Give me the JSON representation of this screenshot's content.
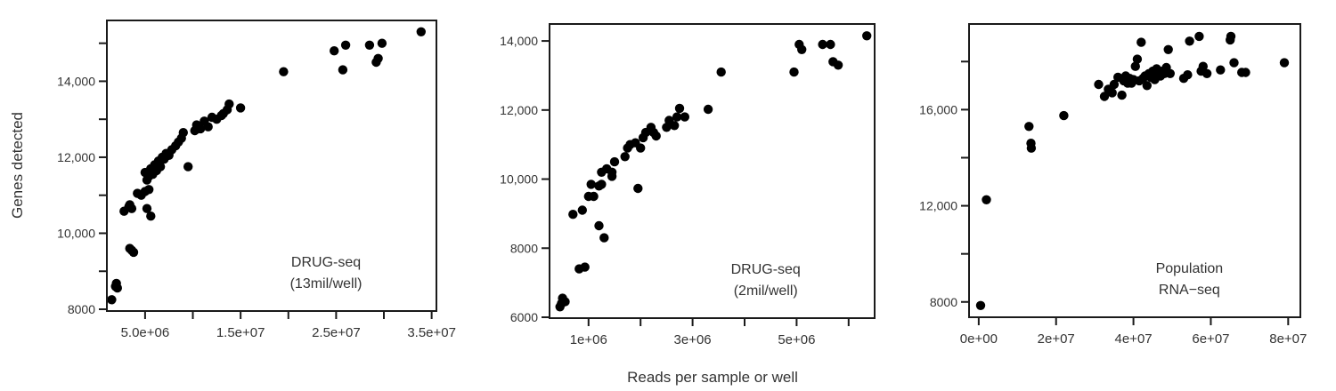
{
  "figure": {
    "ylabel": "Genes detected",
    "xlabel": "Reads per sample or well"
  },
  "chart_data": [
    {
      "type": "scatter",
      "title": "DRUG-seq (13mil/well)",
      "annotation": [
        "DRUG-seq",
        "(13mil/well)"
      ],
      "xlabel": "",
      "ylabel": "Genes detected",
      "xlim": [
        1000000,
        35500000
      ],
      "ylim": [
        8000,
        15600
      ],
      "xticks": [
        {
          "v": 5000000,
          "label": "5.0e+06"
        },
        {
          "v": 10000000,
          "label": ""
        },
        {
          "v": 15000000,
          "label": "1.5e+07"
        },
        {
          "v": 20000000,
          "label": ""
        },
        {
          "v": 25000000,
          "label": "2.5e+07"
        },
        {
          "v": 30000000,
          "label": ""
        },
        {
          "v": 35000000,
          "label": "3.5e+07"
        }
      ],
      "yticks": [
        {
          "v": 8000,
          "label": "8000"
        },
        {
          "v": 9000,
          "label": ""
        },
        {
          "v": 10000,
          "label": "10,000"
        },
        {
          "v": 11000,
          "label": ""
        },
        {
          "v": 12000,
          "label": "12,000"
        },
        {
          "v": 13000,
          "label": ""
        },
        {
          "v": 14000,
          "label": "14,000"
        },
        {
          "v": 15000,
          "label": ""
        }
      ],
      "points": [
        [
          1500000,
          8250
        ],
        [
          1900000,
          8600
        ],
        [
          2000000,
          8680
        ],
        [
          2100000,
          8560
        ],
        [
          3400000,
          9600
        ],
        [
          3600000,
          9550
        ],
        [
          3800000,
          9500
        ],
        [
          2800000,
          10580
        ],
        [
          3300000,
          10700
        ],
        [
          3600000,
          10650
        ],
        [
          3400000,
          10750
        ],
        [
          4200000,
          11050
        ],
        [
          4600000,
          11000
        ],
        [
          5000000,
          11100
        ],
        [
          5200000,
          10650
        ],
        [
          5600000,
          10450
        ],
        [
          5400000,
          11150
        ],
        [
          5000000,
          11600
        ],
        [
          5200000,
          11400
        ],
        [
          5400000,
          11500
        ],
        [
          5600000,
          11700
        ],
        [
          5800000,
          11550
        ],
        [
          6000000,
          11800
        ],
        [
          6200000,
          11650
        ],
        [
          6400000,
          11900
        ],
        [
          6600000,
          11750
        ],
        [
          6800000,
          12000
        ],
        [
          7000000,
          11950
        ],
        [
          7200000,
          12100
        ],
        [
          7500000,
          12050
        ],
        [
          7800000,
          12200
        ],
        [
          8200000,
          12300
        ],
        [
          8500000,
          12400
        ],
        [
          8800000,
          12500
        ],
        [
          9000000,
          12650
        ],
        [
          9500000,
          11750
        ],
        [
          10200000,
          12700
        ],
        [
          10400000,
          12850
        ],
        [
          10800000,
          12750
        ],
        [
          11200000,
          12950
        ],
        [
          11600000,
          12800
        ],
        [
          12000000,
          13050
        ],
        [
          12500000,
          13000
        ],
        [
          13000000,
          13100
        ],
        [
          13200000,
          13150
        ],
        [
          13600000,
          13250
        ],
        [
          13800000,
          13400
        ],
        [
          15000000,
          13300
        ],
        [
          19500000,
          14250
        ],
        [
          24800000,
          14800
        ],
        [
          25700000,
          14300
        ],
        [
          26000000,
          14950
        ],
        [
          28500000,
          14950
        ],
        [
          29200000,
          14500
        ],
        [
          29400000,
          14600
        ],
        [
          29800000,
          15000
        ],
        [
          33900000,
          15300
        ]
      ]
    },
    {
      "type": "scatter",
      "title": "DRUG-seq (2mil/well)",
      "annotation": [
        "DRUG-seq",
        "(2mil/well)"
      ],
      "xlabel": "Reads per sample or well",
      "ylabel": "",
      "xlim": [
        250000,
        6500000
      ],
      "ylim": [
        6000,
        14800
      ],
      "xticks": [
        {
          "v": 1000000,
          "label": "1e+06"
        },
        {
          "v": 2000000,
          "label": ""
        },
        {
          "v": 3000000,
          "label": "3e+06"
        },
        {
          "v": 4000000,
          "label": ""
        },
        {
          "v": 5000000,
          "label": "5e+06"
        },
        {
          "v": 6000000,
          "label": ""
        }
      ],
      "yticks": [
        {
          "v": 6000,
          "label": "6000"
        },
        {
          "v": 8000,
          "label": "8000"
        },
        {
          "v": 10000,
          "label": "10,000"
        },
        {
          "v": 12000,
          "label": "12,000"
        },
        {
          "v": 14000,
          "label": "14,000"
        }
      ],
      "points": [
        [
          450000,
          6300
        ],
        [
          500000,
          6550
        ],
        [
          550000,
          6450
        ],
        [
          480000,
          6400
        ],
        [
          820000,
          7400
        ],
        [
          930000,
          7450
        ],
        [
          700000,
          8980
        ],
        [
          880000,
          9100
        ],
        [
          1000000,
          9500
        ],
        [
          1100000,
          9500
        ],
        [
          1050000,
          9850
        ],
        [
          1200000,
          9800
        ],
        [
          1250000,
          9850
        ],
        [
          1200000,
          8650
        ],
        [
          1300000,
          8300
        ],
        [
          1250000,
          10200
        ],
        [
          1350000,
          10300
        ],
        [
          1450000,
          10200
        ],
        [
          1500000,
          10500
        ],
        [
          1450000,
          10080
        ],
        [
          1700000,
          10650
        ],
        [
          1750000,
          10900
        ],
        [
          1800000,
          11000
        ],
        [
          1900000,
          11050
        ],
        [
          2000000,
          10900
        ],
        [
          1950000,
          9730
        ],
        [
          2050000,
          11200
        ],
        [
          2100000,
          11350
        ],
        [
          2200000,
          11500
        ],
        [
          2250000,
          11350
        ],
        [
          2300000,
          11250
        ],
        [
          2500000,
          11500
        ],
        [
          2550000,
          11700
        ],
        [
          2650000,
          11550
        ],
        [
          2700000,
          11800
        ],
        [
          2750000,
          12050
        ],
        [
          2850000,
          11800
        ],
        [
          3300000,
          12020
        ],
        [
          3550000,
          13100
        ],
        [
          4950000,
          13100
        ],
        [
          5050000,
          13900
        ],
        [
          5100000,
          13750
        ],
        [
          5500000,
          13900
        ],
        [
          5650000,
          13900
        ],
        [
          5700000,
          13400
        ],
        [
          5800000,
          13300
        ],
        [
          6350000,
          14150
        ]
      ]
    },
    {
      "type": "scatter",
      "title": "Population RNA-seq",
      "annotation": [
        "Population",
        "RNA−seq"
      ],
      "xlabel": "",
      "ylabel": "",
      "xlim": [
        -2500000,
        82000000
      ],
      "ylim": [
        7400,
        19600
      ],
      "xticks": [
        {
          "v": 0,
          "label": "0e+00"
        },
        {
          "v": 20000000,
          "label": "2e+07"
        },
        {
          "v": 40000000,
          "label": "4e+07"
        },
        {
          "v": 60000000,
          "label": "6e+07"
        },
        {
          "v": 80000000,
          "label": "8e+07"
        }
      ],
      "yticks": [
        {
          "v": 8000,
          "label": "8000"
        },
        {
          "v": 10000,
          "label": ""
        },
        {
          "v": 12000,
          "label": "12,000"
        },
        {
          "v": 14000,
          "label": ""
        },
        {
          "v": 16000,
          "label": "16,000"
        },
        {
          "v": 18000,
          "label": ""
        }
      ],
      "points": [
        [
          500000,
          7850
        ],
        [
          2000000,
          12250
        ],
        [
          13000000,
          15300
        ],
        [
          13500000,
          14600
        ],
        [
          13600000,
          14400
        ],
        [
          22000000,
          15750
        ],
        [
          31000000,
          17050
        ],
        [
          32500000,
          16550
        ],
        [
          33500000,
          16850
        ],
        [
          34500000,
          16700
        ],
        [
          35000000,
          17050
        ],
        [
          36000000,
          17350
        ],
        [
          37000000,
          16600
        ],
        [
          37500000,
          17200
        ],
        [
          38000000,
          17400
        ],
        [
          38500000,
          17100
        ],
        [
          39000000,
          17300
        ],
        [
          39500000,
          17100
        ],
        [
          40000000,
          17250
        ],
        [
          40500000,
          17800
        ],
        [
          41000000,
          18100
        ],
        [
          41500000,
          17200
        ],
        [
          42000000,
          18800
        ],
        [
          42500000,
          17300
        ],
        [
          43000000,
          17400
        ],
        [
          43500000,
          17000
        ],
        [
          44000000,
          17500
        ],
        [
          44500000,
          17350
        ],
        [
          45000000,
          17600
        ],
        [
          45500000,
          17250
        ],
        [
          46000000,
          17700
        ],
        [
          46500000,
          17450
        ],
        [
          47000000,
          17400
        ],
        [
          47500000,
          17600
        ],
        [
          48000000,
          17500
        ],
        [
          48500000,
          17750
        ],
        [
          49000000,
          18500
        ],
        [
          49500000,
          17500
        ],
        [
          53000000,
          17300
        ],
        [
          54000000,
          17450
        ],
        [
          54500000,
          18850
        ],
        [
          57000000,
          19050
        ],
        [
          57500000,
          17600
        ],
        [
          58000000,
          17800
        ],
        [
          59000000,
          17500
        ],
        [
          62500000,
          17650
        ],
        [
          65000000,
          18900
        ],
        [
          65200000,
          19050
        ],
        [
          66000000,
          17950
        ],
        [
          68000000,
          17550
        ],
        [
          69000000,
          17550
        ],
        [
          79000000,
          17950
        ]
      ]
    }
  ]
}
